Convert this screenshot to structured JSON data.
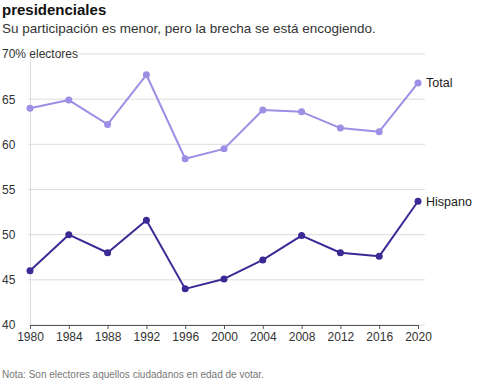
{
  "chart_data": {
    "type": "line",
    "title": "presidenciales",
    "subtitle": "Su participación es menor, pero la brecha se está encogiendo.",
    "note": "Nota: Son electores aquellos ciudadanos en edad de votar.",
    "x": [
      1980,
      1984,
      1988,
      1992,
      1996,
      2000,
      2004,
      2008,
      2012,
      2016,
      2020
    ],
    "series": [
      {
        "name": "Total",
        "color": "#9d8ee6",
        "marker": "circle",
        "values": [
          64.0,
          64.9,
          62.2,
          67.7,
          58.4,
          59.5,
          63.8,
          63.6,
          61.8,
          61.4,
          66.8
        ]
      },
      {
        "name": "Hispano",
        "color": "#3b2a96",
        "marker": "circle",
        "values": [
          46.0,
          50.0,
          48.0,
          51.6,
          44.0,
          45.1,
          47.2,
          49.9,
          48.0,
          47.6,
          53.7
        ]
      }
    ],
    "xlim": [
      1980,
      2020
    ],
    "xticks": [
      1980,
      1984,
      1988,
      1992,
      1996,
      2000,
      2004,
      2008,
      2012,
      2016,
      2020
    ],
    "ylim": [
      40,
      70
    ],
    "yticks": [
      40,
      45,
      50,
      55,
      60,
      65,
      {
        "value": 70,
        "label": "70% electores"
      }
    ],
    "grid": true
  }
}
